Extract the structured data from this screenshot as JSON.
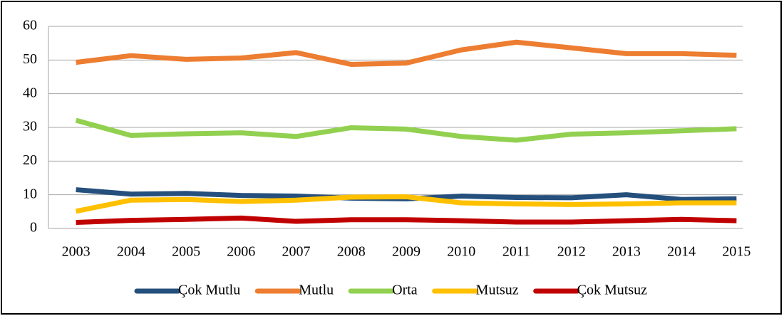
{
  "chart_data": {
    "type": "line",
    "categories": [
      "2003",
      "2004",
      "2005",
      "2006",
      "2007",
      "2008",
      "2009",
      "2010",
      "2011",
      "2012",
      "2013",
      "2014",
      "2015"
    ],
    "series": [
      {
        "name": "Çok Mutlu",
        "color": "#254f7c",
        "values": [
          11.5,
          10.2,
          10.4,
          9.8,
          9.6,
          9.0,
          8.8,
          9.6,
          9.2,
          9.1,
          10.0,
          8.6,
          8.8
        ]
      },
      {
        "name": "Mutlu",
        "color": "#ed7d31",
        "values": [
          49.3,
          51.3,
          50.2,
          50.6,
          52.2,
          48.7,
          49.1,
          53.0,
          55.3,
          53.6,
          51.9,
          51.9,
          51.4
        ]
      },
      {
        "name": "Orta",
        "color": "#92d050",
        "values": [
          32.1,
          27.6,
          28.1,
          28.4,
          27.3,
          29.9,
          29.5,
          27.3,
          26.2,
          28.0,
          28.4,
          29.0,
          29.6
        ]
      },
      {
        "name": "Mutsuz",
        "color": "#ffc000",
        "values": [
          5.1,
          8.4,
          8.6,
          8.0,
          8.4,
          9.3,
          9.4,
          7.6,
          7.3,
          7.1,
          7.3,
          7.6,
          7.6
        ]
      },
      {
        "name": "Çok Mutsuz",
        "color": "#c00000",
        "values": [
          1.8,
          2.4,
          2.7,
          3.1,
          2.1,
          2.6,
          2.6,
          2.3,
          1.9,
          1.9,
          2.3,
          2.7,
          2.3
        ]
      }
    ],
    "ylim": [
      0,
      60
    ],
    "yticks": [
      0,
      10,
      20,
      30,
      40,
      50,
      60
    ],
    "grid": true,
    "legend": "bottom"
  }
}
